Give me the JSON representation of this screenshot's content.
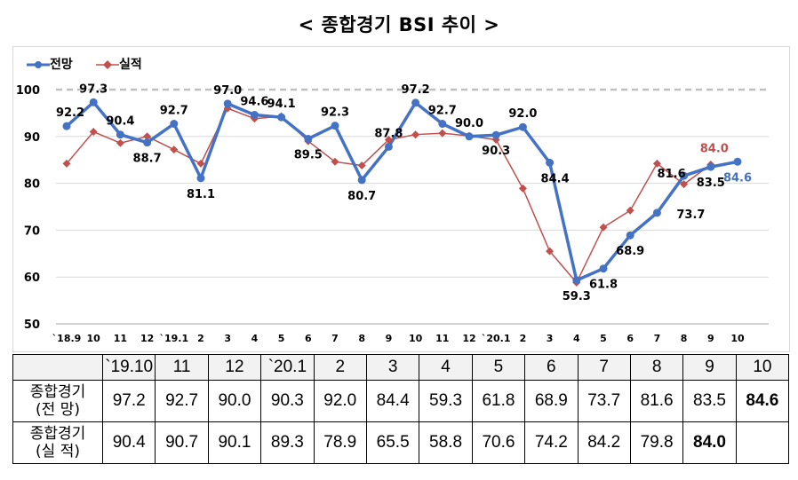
{
  "title": "< 종합경기 BSI 추이 >",
  "colors": {
    "forecast": "#4472c4",
    "actual": "#c0504d",
    "reference": "#bfbfbf",
    "grid": "#d9d9d9"
  },
  "legend": {
    "forecast": "전망",
    "actual": "실적"
  },
  "chart_data": {
    "type": "line",
    "title": "< 종합경기 BSI 추이 >",
    "xlabel": "",
    "ylabel": "",
    "ylim": [
      50,
      100
    ],
    "yticks": [
      "50",
      "60",
      "70",
      "80",
      "90",
      "100"
    ],
    "reference_line": 100,
    "x": [
      "`18.9",
      "10",
      "11",
      "12",
      "`19.1",
      "2",
      "3",
      "4",
      "5",
      "6",
      "7",
      "8",
      "9",
      "10",
      "11",
      "12",
      "`20.1",
      "2",
      "3",
      "4",
      "5",
      "6",
      "7",
      "8",
      "9",
      "10"
    ],
    "series": [
      {
        "name": "전망",
        "values": [
          92.2,
          97.3,
          90.4,
          88.7,
          92.7,
          81.1,
          97.0,
          94.6,
          94.1,
          89.5,
          92.3,
          80.7,
          87.8,
          97.2,
          92.7,
          90.0,
          90.3,
          92.0,
          84.4,
          59.3,
          61.8,
          68.9,
          73.7,
          81.6,
          83.5,
          84.6
        ]
      },
      {
        "name": "실적",
        "values": [
          84.2,
          91.0,
          88.6,
          90.0,
          87.2,
          84.2,
          96.0,
          93.8,
          94.3,
          89.0,
          84.6,
          83.8,
          89.3,
          90.4,
          90.7,
          90.1,
          89.3,
          78.9,
          65.5,
          58.8,
          70.6,
          74.2,
          84.2,
          79.8,
          84.0,
          null
        ]
      }
    ],
    "data_labels": {
      "forecast": [
        "92.2",
        "97.3",
        "90.4",
        "88.7",
        "92.7",
        "81.1",
        "97.0",
        "94.6",
        "94.1",
        "89.5",
        "92.3",
        "80.7",
        "87.8",
        "97.2",
        "92.7",
        "90.0",
        "90.3",
        "92.0",
        "84.4",
        "59.3",
        "61.8",
        "68.9",
        "73.7",
        "81.6",
        "83.5",
        "84.6"
      ],
      "actual_last": "84.0"
    },
    "grid": true,
    "legend_position": "top-left"
  },
  "table": {
    "months": [
      "`19.10",
      "11",
      "12",
      "`20.1",
      "2",
      "3",
      "4",
      "5",
      "6",
      "7",
      "8",
      "9",
      "10"
    ],
    "forecast_row_label": [
      "종합경기",
      "(전 망)"
    ],
    "actual_row_label": [
      "종합경기",
      "(실 적)"
    ],
    "forecast_values": [
      "97.2",
      "92.7",
      "90.0",
      "90.3",
      "92.0",
      "84.4",
      "59.3",
      "61.8",
      "68.9",
      "73.7",
      "81.6",
      "83.5",
      "84.6"
    ],
    "actual_values": [
      "90.4",
      "90.7",
      "90.1",
      "89.3",
      "78.9",
      "65.5",
      "58.8",
      "70.6",
      "74.2",
      "84.2",
      "79.8",
      "84.0",
      ""
    ]
  }
}
